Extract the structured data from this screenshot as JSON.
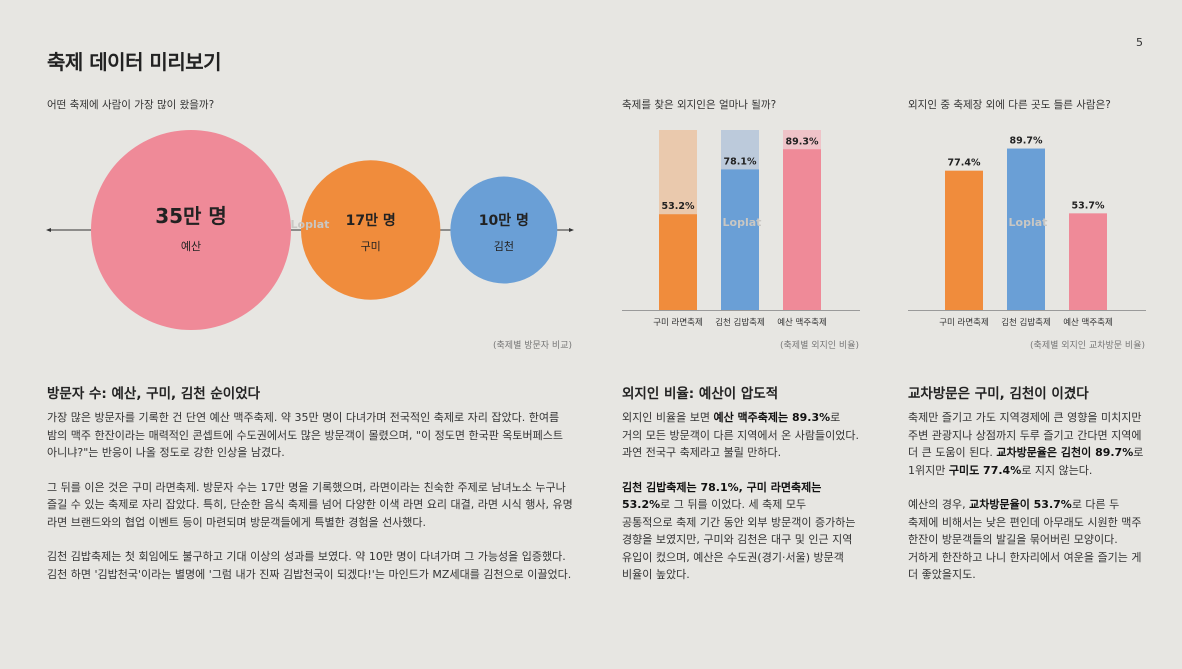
{
  "page": {
    "title": "축제 데이터 미리보기",
    "number": "5"
  },
  "bubble_chart": {
    "question": "어떤 축제에 사람이 가장 많이 왔을까?",
    "source": "(축제별 방문자 비교)",
    "watermark": "Loplat"
  },
  "foreign_chart": {
    "question": "축제를 찾은 외지인은 얼마나 될까?",
    "source": "(축제별 외지인 비율)",
    "watermark": "Loplat"
  },
  "cross_chart": {
    "question": "외지인 중 축제장 외에 다른 곳도 들른 사람은?",
    "source": "(축제별 외지인 교차방문 비율)",
    "watermark": "Loplat"
  },
  "chart_data": [
    {
      "type": "bubble",
      "categories": [
        "예산",
        "구미",
        "김천"
      ],
      "values": [
        35,
        17,
        10
      ],
      "value_labels": [
        "35만 명",
        "17만 명",
        "10만 명"
      ],
      "colors": [
        "#ef8a98",
        "#f08c3c",
        "#6a9fd6"
      ]
    },
    {
      "type": "bar",
      "categories": [
        "구미 라면축제",
        "김천 김밥축제",
        "예산 맥주축제"
      ],
      "values": [
        53.2,
        78.1,
        89.3
      ],
      "value_labels": [
        "53.2%",
        "78.1%",
        "89.3%"
      ],
      "ylim": [
        0,
        100
      ],
      "colors": [
        "#f08c3c",
        "#6a9fd6",
        "#ef8a98"
      ],
      "background_colors": [
        "#eac9ad",
        "#bccadb",
        "#efc3c8"
      ]
    },
    {
      "type": "bar",
      "categories": [
        "구미 라면축제",
        "김천 김밥축제",
        "예산 맥주축제"
      ],
      "values": [
        77.4,
        89.7,
        53.7
      ],
      "value_labels": [
        "77.4%",
        "89.7%",
        "53.7%"
      ],
      "ylim": [
        0,
        100
      ],
      "colors": [
        "#f08c3c",
        "#6a9fd6",
        "#ef8a98"
      ]
    }
  ],
  "sections": {
    "visitors": {
      "title": "방문자 수: 예산, 구미, 김천 순이었다",
      "p1": "가장 많은 방문자를 기록한 건 단연 예산 맥주축제. 약 35만 명이 다녀가며 전국적인 축제로 자리 잡았다. 한여름 밤의 맥주 한잔이라는 매력적인 콘셉트에 수도권에서도 많은 방문객이 몰렸으며, \"이 정도면 한국판 옥토버페스트 아니냐?\"는 반응이 나올 정도로 강한 인상을 남겼다.",
      "p2": "그 뒤를 이은 것은 구미 라면축제. 방문자 수는 17만 명을 기록했으며, 라면이라는 친숙한 주제로 남녀노소 누구나 즐길 수 있는 축제로 자리 잡았다. 특히, 단순한 음식 축제를 넘어 다양한 이색 라면 요리 대결, 라면 시식 행사, 유명 라면 브랜드와의 협업 이벤트 등이 마련되며 방문객들에게 특별한 경험을 선사했다.",
      "p3": "김천 김밥축제는 첫 회임에도 불구하고 기대 이상의 성과를 보였다. 약 10만 명이 다녀가며 그 가능성을 입증했다. 김천 하면 '김밥천국'이라는 별명에 '그럼 내가 진짜 김밥천국이 되겠다!'는 마인드가 MZ세대를 김천으로 이끌었다."
    },
    "foreign": {
      "title": "외지인 비율: 예산이 압도적",
      "p1_pre": "외지인 비율을 보면 ",
      "p1_bold": "예산 맥주축제는 89.3%",
      "p1_post": "로 거의 모든 방문객이 다른 지역에서 온 사람들이었다. 과연 전국구 축제라고 불릴 만하다.",
      "p2_bold": "김천 김밥축제는 78.1%, 구미 라면축제는 53.2%",
      "p2_post": "로 그 뒤를 이었다. 세 축제 모두 공통적으로 축제 기간 동안 외부 방문객이 증가하는 경향을 보였지만, 구미와 김천은 대구 및 인근 지역 유입이 컸으며, 예산은 수도권(경기·서울) 방문객 비율이 높았다."
    },
    "cross": {
      "title": "교차방문은 구미, 김천이 이겼다",
      "p1_pre": "축제만 즐기고 가도 지역경제에 큰 영향을 미치지만 주변 관광지나 상점까지 두루 즐기고 간다면 지역에 더 큰 도움이 된다. ",
      "p1_bold1": "교차방문율은 김천이 89.7%",
      "p1_mid": "로 1위지만 ",
      "p1_bold2": "구미도 77.4%",
      "p1_post": "로 지지 않는다.",
      "p2_pre": "예산의 경우, ",
      "p2_bold": "교차방문율이 53.7%",
      "p2_post": "로 다른 두 축제에 비해서는 낮은 편인데 아무래도 시원한 맥주 한잔이 방문객들의 발길을 묶어버린 모양이다. 거하게 한잔하고 나니 한자리에서 여운을 즐기는 게 더 좋았을지도."
    }
  }
}
